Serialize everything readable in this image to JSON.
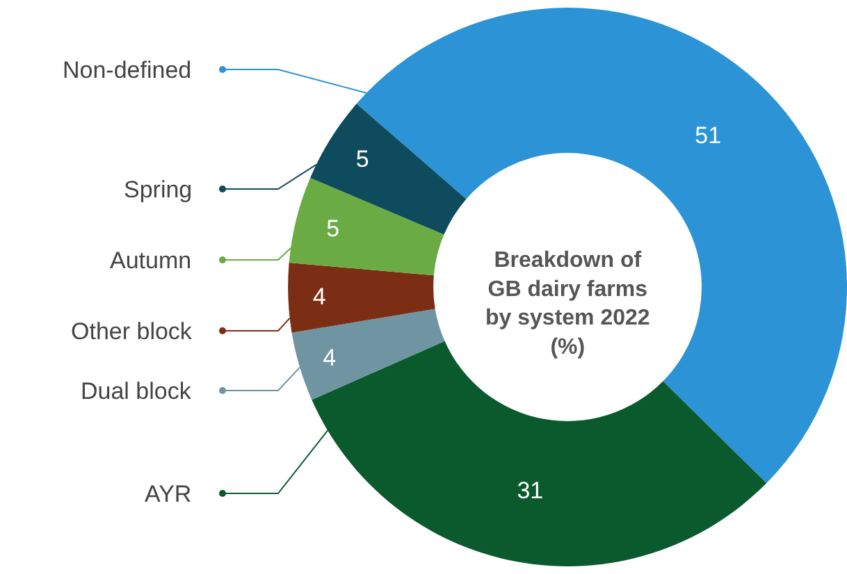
{
  "chart_data": {
    "type": "donut",
    "title": "Breakdown of GB dairy farms by system 2022 (%)",
    "categories": [
      "Non-defined",
      "AYR",
      "Dual block",
      "Other block",
      "Autumn",
      "Spring"
    ],
    "values": [
      51,
      31,
      4,
      4,
      5,
      5
    ],
    "colors": [
      "#2b93d6",
      "#0b5a2e",
      "#6f95a3",
      "#7b2e14",
      "#6aab43",
      "#0e4b5c"
    ],
    "data_labels": true,
    "legend": "left"
  }
}
